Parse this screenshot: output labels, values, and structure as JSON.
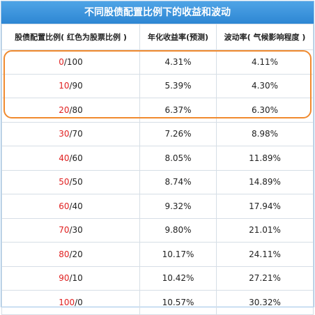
{
  "title": "不同股债配置比例下的收益和波动",
  "headers": {
    "ratio": "股债配置比例( 红色为股票比例 )",
    "return": "年化收益率(预测)",
    "volatility": "波动率( 气候影响程度 )"
  },
  "rows": [
    {
      "stock": "0",
      "bond": "/100",
      "return": "4.31%",
      "volatility": "4.11%"
    },
    {
      "stock": "10",
      "bond": "/90",
      "return": "5.39%",
      "volatility": "4.30%"
    },
    {
      "stock": "20",
      "bond": "/80",
      "return": "6.37%",
      "volatility": "6.30%"
    },
    {
      "stock": "30",
      "bond": "/70",
      "return": "7.26%",
      "volatility": "8.98%"
    },
    {
      "stock": "40",
      "bond": "/60",
      "return": "8.05%",
      "volatility": "11.89%"
    },
    {
      "stock": "50",
      "bond": "/50",
      "return": "8.74%",
      "volatility": "14.89%"
    },
    {
      "stock": "60",
      "bond": "/40",
      "return": "9.32%",
      "volatility": "17.94%"
    },
    {
      "stock": "70",
      "bond": "/30",
      "return": "9.80%",
      "volatility": "21.01%"
    },
    {
      "stock": "80",
      "bond": "/20",
      "return": "10.17%",
      "volatility": "24.11%"
    },
    {
      "stock": "90",
      "bond": "/10",
      "return": "10.42%",
      "volatility": "27.21%"
    },
    {
      "stock": "100",
      "bond": "/0",
      "return": "10.57%",
      "volatility": "30.32%"
    }
  ],
  "colors": {
    "header_bg": "#2d86d3",
    "stock_text": "#e02020",
    "highlight_border": "#f08a2e"
  }
}
